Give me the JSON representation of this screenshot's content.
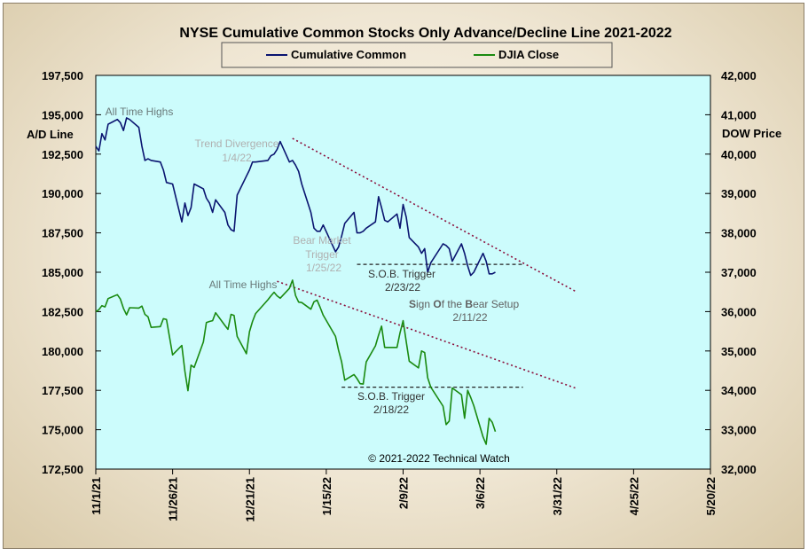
{
  "chart_data": {
    "type": "line",
    "title": "NYSE Cumulative  Common Stocks Only Advance/Decline  Line 2021-2022",
    "legend_position": "top",
    "ylabel_left": "A/D Line",
    "ylabel_right": "DOW Price",
    "ylim_left": [
      172500,
      197500
    ],
    "ylim_right": [
      32000,
      42000
    ],
    "xlim": [
      "2021-11-01",
      "2022-05-20"
    ],
    "x_ticks": [
      "11/1/21",
      "11/26/21",
      "12/21/21",
      "1/15/22",
      "2/9/22",
      "3/6/22",
      "3/31/22",
      "4/25/22",
      "5/20/22"
    ],
    "y_ticks_left": [
      "197,500",
      "195,000",
      "192,500",
      "190,000",
      "187,500",
      "185,000",
      "182,500",
      "180,000",
      "177,500",
      "175,000",
      "172,500"
    ],
    "y_ticks_right": [
      "42,000",
      "41,000",
      "40,000",
      "39,000",
      "38,000",
      "37,000",
      "36,000",
      "35,000",
      "34,000",
      "33,000",
      "32,000"
    ],
    "grid": false,
    "copyright": "© 2021-2022  Technical Watch",
    "series": [
      {
        "name": "Cumulative Common",
        "color": "#0a1470",
        "axis": "left",
        "x": [
          "2021-11-01",
          "2021-11-02",
          "2021-11-03",
          "2021-11-04",
          "2021-11-05",
          "2021-11-08",
          "2021-11-09",
          "2021-11-10",
          "2021-11-11",
          "2021-11-12",
          "2021-11-15",
          "2021-11-16",
          "2021-11-17",
          "2021-11-18",
          "2021-11-19",
          "2021-11-22",
          "2021-11-23",
          "2021-11-24",
          "2021-11-26",
          "2021-11-29",
          "2021-11-30",
          "2021-12-01",
          "2021-12-02",
          "2021-12-03",
          "2021-12-06",
          "2021-12-07",
          "2021-12-08",
          "2021-12-09",
          "2021-12-10",
          "2021-12-13",
          "2021-12-14",
          "2021-12-15",
          "2021-12-16",
          "2021-12-17",
          "2021-12-20",
          "2021-12-21",
          "2021-12-22",
          "2021-12-23",
          "2021-12-27",
          "2021-12-28",
          "2021-12-29",
          "2021-12-30",
          "2021-12-31",
          "2022-01-03",
          "2022-01-04",
          "2022-01-05",
          "2022-01-06",
          "2022-01-07",
          "2022-01-10",
          "2022-01-11",
          "2022-01-12",
          "2022-01-13",
          "2022-01-14",
          "2022-01-18",
          "2022-01-19",
          "2022-01-20",
          "2022-01-21",
          "2022-01-24",
          "2022-01-25",
          "2022-01-26",
          "2022-01-27",
          "2022-01-28",
          "2022-01-31",
          "2022-02-01",
          "2022-02-02",
          "2022-02-03",
          "2022-02-04",
          "2022-02-07",
          "2022-02-08",
          "2022-02-09",
          "2022-02-10",
          "2022-02-11",
          "2022-02-14",
          "2022-02-15",
          "2022-02-16",
          "2022-02-17",
          "2022-02-18",
          "2022-02-22",
          "2022-02-23",
          "2022-02-24",
          "2022-02-25",
          "2022-02-28",
          "2022-03-01",
          "2022-03-02",
          "2022-03-03",
          "2022-03-04",
          "2022-03-07",
          "2022-03-08",
          "2022-03-09",
          "2022-03-10",
          "2022-03-11"
        ],
        "values": [
          193000,
          192700,
          193800,
          193400,
          194400,
          194700,
          194500,
          194000,
          194800,
          194700,
          194200,
          193000,
          192100,
          192200,
          192100,
          192000,
          191500,
          190700,
          190600,
          188200,
          189400,
          188600,
          189100,
          190600,
          190300,
          189700,
          189400,
          188800,
          189600,
          188800,
          188000,
          187700,
          187600,
          189900,
          191100,
          191500,
          192000,
          192000,
          192100,
          192400,
          192500,
          192800,
          193300,
          192000,
          192100,
          191800,
          191400,
          190600,
          188800,
          187800,
          187600,
          187600,
          188000,
          186300,
          186600,
          187300,
          188100,
          188800,
          187500,
          187500,
          187600,
          187800,
          188200,
          189800,
          189100,
          188300,
          188200,
          188700,
          187800,
          189300,
          188500,
          187200,
          186600,
          186200,
          186500,
          185000,
          185600,
          186800,
          186700,
          186500,
          185700,
          186800,
          186200,
          185400,
          184800,
          185000,
          186200,
          185700,
          184900,
          184900,
          185000
        ]
      },
      {
        "name": "DJIA Close",
        "color": "#1a8a10",
        "axis": "right",
        "x": [
          "2021-11-01",
          "2021-11-02",
          "2021-11-03",
          "2021-11-04",
          "2021-11-05",
          "2021-11-08",
          "2021-11-09",
          "2021-11-10",
          "2021-11-11",
          "2021-11-12",
          "2021-11-15",
          "2021-11-16",
          "2021-11-17",
          "2021-11-18",
          "2021-11-19",
          "2021-11-22",
          "2021-11-23",
          "2021-11-24",
          "2021-11-26",
          "2021-11-29",
          "2021-11-30",
          "2021-12-01",
          "2021-12-02",
          "2021-12-03",
          "2021-12-06",
          "2021-12-07",
          "2021-12-08",
          "2021-12-09",
          "2021-12-10",
          "2021-12-13",
          "2021-12-14",
          "2021-12-15",
          "2021-12-16",
          "2021-12-17",
          "2021-12-20",
          "2021-12-21",
          "2021-12-22",
          "2021-12-23",
          "2021-12-27",
          "2021-12-28",
          "2021-12-29",
          "2021-12-30",
          "2021-12-31",
          "2022-01-03",
          "2022-01-04",
          "2022-01-05",
          "2022-01-06",
          "2022-01-07",
          "2022-01-10",
          "2022-01-11",
          "2022-01-12",
          "2022-01-13",
          "2022-01-14",
          "2022-01-18",
          "2022-01-19",
          "2022-01-20",
          "2022-01-21",
          "2022-01-24",
          "2022-01-25",
          "2022-01-26",
          "2022-01-27",
          "2022-01-28",
          "2022-01-31",
          "2022-02-01",
          "2022-02-02",
          "2022-02-03",
          "2022-02-04",
          "2022-02-07",
          "2022-02-08",
          "2022-02-09",
          "2022-02-10",
          "2022-02-11",
          "2022-02-14",
          "2022-02-15",
          "2022-02-16",
          "2022-02-17",
          "2022-02-18",
          "2022-02-22",
          "2022-02-23",
          "2022-02-24",
          "2022-02-25",
          "2022-02-28",
          "2022-03-01",
          "2022-03-02",
          "2022-03-03",
          "2022-03-04",
          "2022-03-07",
          "2022-03-08",
          "2022-03-09",
          "2022-03-10",
          "2022-03-11"
        ],
        "values": [
          36000,
          36050,
          36150,
          36120,
          36330,
          36430,
          36320,
          36080,
          35920,
          36100,
          36090,
          36140,
          35930,
          35870,
          35600,
          35620,
          35820,
          35800,
          34900,
          35140,
          34480,
          33990,
          34640,
          34580,
          35230,
          35720,
          35750,
          35770,
          35970,
          35650,
          35550,
          35930,
          35900,
          35370,
          34930,
          35490,
          35750,
          35950,
          36300,
          36400,
          36490,
          36400,
          36340,
          36590,
          36800,
          36410,
          36240,
          36230,
          36060,
          36250,
          36290,
          36110,
          35910,
          35370,
          35020,
          34720,
          34260,
          34400,
          34300,
          34170,
          34160,
          34720,
          35130,
          35400,
          35630,
          35090,
          35090,
          35090,
          35460,
          35770,
          35240,
          34740,
          34570,
          35000,
          34960,
          34320,
          34080,
          33600,
          33130,
          33220,
          34060,
          33890,
          33290,
          34000,
          33820,
          33610,
          32820,
          32630,
          33290,
          33190,
          32950
        ]
      }
    ],
    "annotations": [
      {
        "text": "All Time Highs"
      },
      {
        "text": "Trend  Divergence",
        "sub": "1/4/22"
      },
      {
        "text": "Bear Market",
        "text2": "Trigger",
        "sub": "1/25/22"
      },
      {
        "text": "S.O.B. Trigger",
        "sub": "2/23/22"
      },
      {
        "text_parts": [
          [
            "S",
            "bold"
          ],
          [
            "ign ",
            ""
          ],
          [
            "O",
            "bold"
          ],
          [
            "f the ",
            ""
          ],
          [
            "B",
            "bold"
          ],
          [
            "ear Setup",
            ""
          ]
        ],
        "sub": "2/11/22"
      },
      {
        "text": "All Time Highs"
      },
      {
        "text": "S.O.B. Trigger",
        "sub": "2/18/22"
      }
    ],
    "trendlines": [
      {
        "name": "ad-downtrend",
        "from": [
          "2022-01-04",
          193500
        ],
        "to": [
          "2022-04-06",
          183800
        ],
        "axis": "left"
      },
      {
        "name": "dow-downtrend",
        "from": [
          "2021-12-30",
          36770
        ],
        "to": [
          "2022-04-06",
          34060
        ],
        "axis": "right"
      },
      {
        "name": "ad-support",
        "from": [
          "2022-01-25",
          185500
        ],
        "to": [
          "2022-03-20",
          185500
        ],
        "axis": "left"
      },
      {
        "name": "dow-support",
        "from": [
          "2022-01-20",
          34080
        ],
        "to": [
          "2022-03-20",
          34080
        ],
        "axis": "right"
      }
    ]
  }
}
